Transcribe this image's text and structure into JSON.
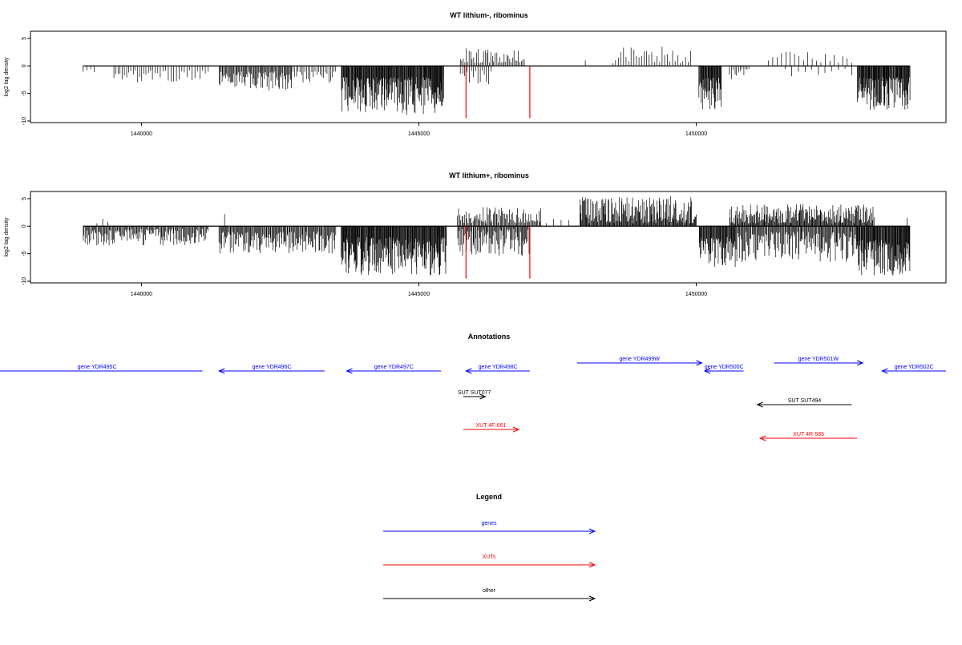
{
  "colors": {
    "gene": "#0000ff",
    "xut": "#ff0000",
    "other": "#000000",
    "marker": "#ff0000",
    "bar": "#000000"
  },
  "chart_data": [
    {
      "type": "bar",
      "title": "WT lithium-, ribominus",
      "ylabel": "log2 tag density",
      "ylim": [
        -10,
        6
      ],
      "xlim": [
        1438000,
        1454500
      ],
      "yticks": [
        {
          "value": 5,
          "label": "5"
        },
        {
          "value": 0,
          "label": "0"
        },
        {
          "value": -5,
          "label": "-5"
        },
        {
          "value": -10,
          "label": "-10"
        }
      ],
      "xticks": [
        {
          "value": 1440000,
          "label": "1440000"
        },
        {
          "value": 1445000,
          "label": "1445000"
        },
        {
          "value": 1450000,
          "label": "1450000"
        }
      ],
      "baseline": [
        1438950,
        1453850
      ],
      "marker_lines": [
        {
          "x": 1445850,
          "y": -9.5
        },
        {
          "x": 1447000,
          "y": -9.5
        }
      ],
      "neg_segments": [
        {
          "start": 1438950,
          "end": 1439150,
          "min": 0.5,
          "max": 1.3,
          "density": 0.2
        },
        {
          "start": 1439500,
          "end": 1440200,
          "min": 0.8,
          "max": 3.2,
          "density": 0.25
        },
        {
          "start": 1440200,
          "end": 1441200,
          "min": 0.8,
          "max": 3.0,
          "density": 0.2
        },
        {
          "start": 1441400,
          "end": 1442700,
          "min": 1.0,
          "max": 4.5,
          "density": 0.55
        },
        {
          "start": 1442700,
          "end": 1443500,
          "min": 1.0,
          "max": 3.2,
          "density": 0.3
        },
        {
          "start": 1443600,
          "end": 1445450,
          "min": 2.0,
          "max": 9.0,
          "density": 1.0
        },
        {
          "start": 1445750,
          "end": 1446300,
          "min": 0.5,
          "max": 3.5,
          "density": 0.25
        },
        {
          "start": 1450050,
          "end": 1450450,
          "min": 2.0,
          "max": 8.5,
          "density": 1.0
        },
        {
          "start": 1450600,
          "end": 1450950,
          "min": 0.5,
          "max": 2.5,
          "density": 0.3
        },
        {
          "start": 1451600,
          "end": 1452800,
          "min": 0.5,
          "max": 2.0,
          "density": 0.08
        },
        {
          "start": 1452900,
          "end": 1453850,
          "min": 2.0,
          "max": 8.0,
          "density": 1.0
        }
      ],
      "pos_segments": [
        {
          "start": 1445750,
          "end": 1446900,
          "min": 0.5,
          "max": 3.2,
          "density": 0.35
        },
        {
          "start": 1448000,
          "end": 1448000,
          "min": 1.0,
          "max": 1.0,
          "density": 0.05
        },
        {
          "start": 1448500,
          "end": 1449900,
          "min": 0.5,
          "max": 3.8,
          "density": 0.2
        },
        {
          "start": 1451300,
          "end": 1452800,
          "min": 0.5,
          "max": 2.8,
          "density": 0.12
        }
      ]
    },
    {
      "type": "bar",
      "title": "WT lithium+, ribominus",
      "ylabel": "log2 tag density",
      "ylim": [
        -10,
        6
      ],
      "xlim": [
        1438000,
        1454500
      ],
      "yticks": [
        {
          "value": 5,
          "label": "5"
        },
        {
          "value": 0,
          "label": "0"
        },
        {
          "value": -5,
          "label": "-5"
        },
        {
          "value": -10,
          "label": "-10"
        }
      ],
      "xticks": [
        {
          "value": 1440000,
          "label": "1440000"
        },
        {
          "value": 1445000,
          "label": "1445000"
        },
        {
          "value": 1450000,
          "label": "1450000"
        }
      ],
      "baseline": [
        1438950,
        1453850
      ],
      "marker_lines": [
        {
          "x": 1445850,
          "y": -9.5
        },
        {
          "x": 1447000,
          "y": -9.5
        }
      ],
      "neg_segments": [
        {
          "start": 1438950,
          "end": 1441200,
          "min": 0.5,
          "max": 3.5,
          "density": 0.55
        },
        {
          "start": 1441400,
          "end": 1443500,
          "min": 1.0,
          "max": 5.0,
          "density": 0.6
        },
        {
          "start": 1443600,
          "end": 1445500,
          "min": 2.0,
          "max": 9.0,
          "density": 1.0
        },
        {
          "start": 1445700,
          "end": 1447000,
          "min": 0.5,
          "max": 5.5,
          "density": 0.6
        },
        {
          "start": 1450050,
          "end": 1450700,
          "min": 2.0,
          "max": 7.5,
          "density": 0.9
        },
        {
          "start": 1450700,
          "end": 1452900,
          "min": 1.0,
          "max": 6.5,
          "density": 0.6
        },
        {
          "start": 1452900,
          "end": 1453850,
          "min": 2.5,
          "max": 9.0,
          "density": 1.0
        }
      ],
      "pos_segments": [
        {
          "start": 1439200,
          "end": 1439400,
          "min": 0.5,
          "max": 1.5,
          "density": 0.15
        },
        {
          "start": 1441500,
          "end": 1441500,
          "min": 2.2,
          "max": 2.2,
          "density": 0.05
        },
        {
          "start": 1445700,
          "end": 1447200,
          "min": 0.5,
          "max": 3.5,
          "density": 0.5
        },
        {
          "start": 1447300,
          "end": 1447700,
          "min": 0.5,
          "max": 1.5,
          "density": 0.1
        },
        {
          "start": 1447900,
          "end": 1450000,
          "min": 0.5,
          "max": 5.5,
          "density": 0.75
        },
        {
          "start": 1450600,
          "end": 1453200,
          "min": 0.5,
          "max": 4.0,
          "density": 0.7
        },
        {
          "start": 1453800,
          "end": 1453800,
          "min": 1.5,
          "max": 1.5,
          "density": 0.05
        }
      ]
    }
  ],
  "annotations": {
    "title": "Annotations",
    "items": [
      {
        "label": "gene YDR495C",
        "kind": "gene",
        "dir": "left",
        "start": 1437300,
        "end": 1441100,
        "row": 1
      },
      {
        "label": "gene YDR496C",
        "kind": "gene",
        "dir": "left",
        "start": 1441400,
        "end": 1443300,
        "row": 1
      },
      {
        "label": "gene YDR497C",
        "kind": "gene",
        "dir": "left",
        "start": 1443700,
        "end": 1445400,
        "row": 1
      },
      {
        "label": "gene YDR498C",
        "kind": "gene",
        "dir": "left",
        "start": 1445850,
        "end": 1447000,
        "row": 1
      },
      {
        "label": "gene YDR499W",
        "kind": "gene",
        "dir": "right",
        "start": 1447850,
        "end": 1450100,
        "row": 0
      },
      {
        "label": "gene YDR500C",
        "kind": "gene",
        "dir": "left",
        "start": 1450150,
        "end": 1450850,
        "row": 1
      },
      {
        "label": "gene YDR501W",
        "kind": "gene",
        "dir": "right",
        "start": 1451400,
        "end": 1453000,
        "row": 0
      },
      {
        "label": "gene YDR502C",
        "kind": "gene",
        "dir": "left",
        "start": 1453350,
        "end": 1454500,
        "row": 1
      },
      {
        "label": "SUT SUT077",
        "kind": "other",
        "dir": "right",
        "start": 1445800,
        "end": 1446200,
        "row": 2
      },
      {
        "label": "SUT SUT494",
        "kind": "other",
        "dir": "left",
        "start": 1451100,
        "end": 1452800,
        "row": 3
      },
      {
        "label": "XUT 4F-661",
        "kind": "xut",
        "dir": "right",
        "start": 1445800,
        "end": 1446800,
        "row": 4
      },
      {
        "label": "XUT 4R-585",
        "kind": "xut",
        "dir": "left",
        "start": 1451150,
        "end": 1452900,
        "row": 5
      }
    ]
  },
  "legend": {
    "title": "Legend",
    "items": [
      {
        "label": "genes",
        "kind": "gene"
      },
      {
        "label": "XUTs",
        "kind": "xut"
      },
      {
        "label": "other",
        "kind": "other"
      }
    ]
  }
}
